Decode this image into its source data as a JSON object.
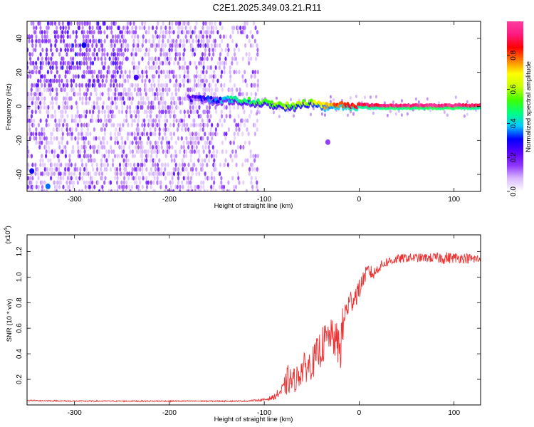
{
  "title": "C2E1.2025.349.03.21.R11",
  "chart_data": [
    {
      "type": "heatmap",
      "xlabel": "Height of straight line (km)",
      "ylabel": "Frequency (Hz)",
      "xlim": [
        -350,
        128
      ],
      "ylim": [
        -50,
        50
      ],
      "x_ticks": [
        -300,
        -200,
        -100,
        0,
        100
      ],
      "y_ticks": [
        -40,
        -20,
        0,
        20,
        40
      ],
      "colorbar": {
        "label": "Normalized spectral amplitude",
        "range": [
          0,
          1
        ],
        "ticks": [
          "0.0",
          "0.2",
          "0.4",
          "0.6",
          "0.8"
        ],
        "tick_values": [
          0,
          0.2,
          0.4,
          0.6,
          0.8
        ],
        "colors": [
          "#ffffff",
          "#d9b8ff",
          "#8f35ff",
          "#5a00ff",
          "#0000ff",
          "#00c8ff",
          "#00ff80",
          "#40ff00",
          "#c8ff00",
          "#ffff00",
          "#ff8000",
          "#ff0000",
          "#ff1a80",
          "#ff3fa0"
        ]
      },
      "ridge": {
        "x": [
          -180,
          -150,
          -130,
          -110,
          -95,
          -80,
          -70,
          -60,
          -50,
          -40,
          -30,
          -20,
          -10,
          0,
          20,
          40,
          60,
          80,
          100,
          128
        ],
        "y": [
          5,
          4,
          4,
          3,
          2,
          1,
          0,
          2,
          3,
          1,
          0,
          1,
          1,
          1,
          0.5,
          0.5,
          0.5,
          0.5,
          0.5,
          0.5
        ],
        "amplitude": [
          0.2,
          0.35,
          0.45,
          0.5,
          0.55,
          0.6,
          0.55,
          0.6,
          0.6,
          0.7,
          0.75,
          0.8,
          0.85,
          0.88,
          0.92,
          0.95,
          0.96,
          0.95,
          0.95,
          0.9
        ]
      },
      "feature_points": [
        {
          "x": -290,
          "y": 36,
          "amplitude": 0.3
        },
        {
          "x": -235,
          "y": 17,
          "amplitude": 0.25
        },
        {
          "x": -345,
          "y": -38,
          "amplitude": 0.3
        },
        {
          "x": -328,
          "y": -47,
          "amplitude": 0.35
        },
        {
          "x": -33,
          "y": -21,
          "amplitude": 0.15
        }
      ]
    },
    {
      "type": "line",
      "xlabel": "Height of straight line (km)",
      "ylabel": "SNR (10 * v/v)",
      "y_multiplier": "(x10",
      "y_multiplier_exp": "4",
      "y_multiplier_close": ")",
      "xlim": [
        -350,
        128
      ],
      "ylim": [
        0,
        1.33
      ],
      "x_ticks": [
        -300,
        -200,
        -100,
        0,
        100
      ],
      "y_ticks": [
        0.2,
        0.4,
        0.6,
        0.8,
        1.0,
        1.2
      ],
      "y_tick_labels": [
        "0.2",
        "0.4",
        "0.6",
        "0.8",
        "1.0",
        "1.2"
      ],
      "series": [
        {
          "color": "#ee3333",
          "x": [
            -350,
            -300,
            -250,
            -200,
            -150,
            -120,
            -100,
            -90,
            -80,
            -75,
            -70,
            -65,
            -60,
            -55,
            -50,
            -45,
            -40,
            -35,
            -30,
            -25,
            -20,
            -18,
            -15,
            -10,
            -5,
            0,
            5,
            10,
            15,
            20,
            25,
            30,
            40,
            50,
            60,
            70,
            80,
            90,
            100,
            110,
            120,
            128
          ],
          "y": [
            0.035,
            0.03,
            0.03,
            0.03,
            0.03,
            0.03,
            0.04,
            0.06,
            0.12,
            0.2,
            0.18,
            0.22,
            0.28,
            0.3,
            0.32,
            0.38,
            0.45,
            0.5,
            0.55,
            0.5,
            0.45,
            0.55,
            0.72,
            0.8,
            0.85,
            0.9,
            1.0,
            1.05,
            1.02,
            1.07,
            1.1,
            1.12,
            1.14,
            1.15,
            1.15,
            1.15,
            1.15,
            1.15,
            1.15,
            1.15,
            1.14,
            1.14
          ],
          "noise": [
            0.005,
            0.005,
            0.005,
            0.005,
            0.005,
            0.005,
            0.01,
            0.02,
            0.06,
            0.12,
            0.1,
            0.1,
            0.12,
            0.12,
            0.12,
            0.14,
            0.15,
            0.15,
            0.12,
            0.15,
            0.2,
            0.2,
            0.1,
            0.1,
            0.1,
            0.08,
            0.06,
            0.06,
            0.05,
            0.04,
            0.04,
            0.04,
            0.035,
            0.035,
            0.035,
            0.035,
            0.04,
            0.05,
            0.04,
            0.04,
            0.04,
            0.04
          ]
        }
      ]
    }
  ]
}
